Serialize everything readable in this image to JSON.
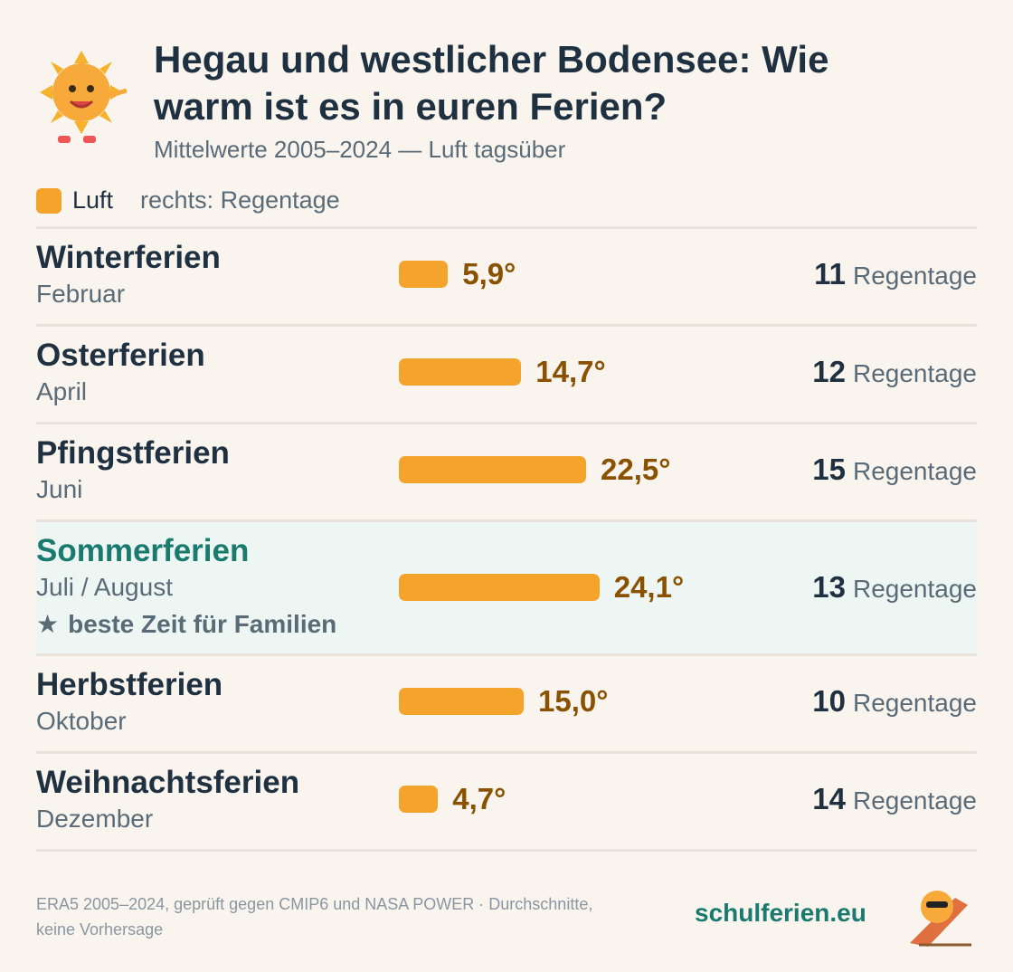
{
  "chart_data": {
    "type": "bar",
    "title": "Hegau und westlicher Bodensee: Wie warm ist es in euren Ferien?",
    "subtitle": "Mittelwerte 2005–2024 — Luft tagsüber",
    "rain_note": "rechts: Regentage",
    "categories": [
      "Winterferien",
      "Osterferien",
      "Pfingstferien",
      "Sommerferien",
      "Herbstferien",
      "Weihnachtsferien"
    ],
    "months": [
      "Februar",
      "April",
      "Juni",
      "Juli / August",
      "Oktober",
      "Dezember"
    ],
    "series": [
      {
        "name": "Luft",
        "color": "#f4a42a",
        "values": [
          5.9,
          14.7,
          22.5,
          24.1,
          15.0,
          4.7
        ],
        "value_labels": [
          "5,9°",
          "14,7°",
          "22,5°",
          "24,1°",
          "15,0°",
          "4,7°"
        ]
      }
    ],
    "rain_days": [
      11,
      12,
      15,
      13,
      10,
      14
    ],
    "rain_unit": "Regentage",
    "highlight": {
      "index": 3,
      "note": "beste Zeit für Familien"
    },
    "footer": {
      "source": "ERA5 2005–2024, geprüft gegen CMIP6 und NASA POWER · Durchschnitte, keine Vorhersage",
      "brand": "schulferien.eu"
    }
  }
}
